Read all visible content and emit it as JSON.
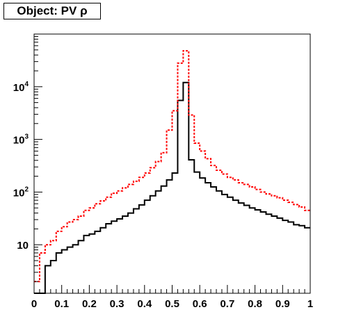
{
  "chart_data": {
    "type": "histogram",
    "title": "Object: PV ρ",
    "x_axis": {
      "range": [
        0,
        1
      ],
      "ticks": [
        "0",
        "0.1",
        "0.2",
        "0.3",
        "0.4",
        "0.5",
        "0.6",
        "0.7",
        "0.8",
        "0.9",
        "1"
      ],
      "tick_values": [
        0,
        0.1,
        0.2,
        0.3,
        0.4,
        0.5,
        0.6,
        0.7,
        0.8,
        0.9,
        1
      ]
    },
    "y_axis": {
      "scale": "log",
      "range": [
        1.2,
        100000
      ],
      "tick_labels": [
        {
          "value": 10,
          "base": "10",
          "exp": ""
        },
        {
          "value": 100,
          "base": "10",
          "exp": "2"
        },
        {
          "value": 1000,
          "base": "10",
          "exp": "3"
        },
        {
          "value": 10000,
          "base": "10",
          "exp": "4"
        }
      ]
    },
    "bin_edges": {
      "start": 0,
      "end": 1,
      "count": 50
    },
    "grid": false,
    "series": [
      {
        "color": "#000000",
        "style": "solid",
        "values": [
          1.2,
          1.2,
          4,
          5,
          7,
          8,
          9,
          10,
          12,
          15,
          16,
          18,
          21,
          25,
          28,
          31,
          35,
          40,
          48,
          57,
          70,
          85,
          105,
          130,
          170,
          230,
          5500,
          12000,
          410,
          240,
          185,
          150,
          125,
          105,
          90,
          80,
          70,
          62,
          56,
          50,
          46,
          42,
          38,
          35,
          32,
          29,
          27,
          24,
          23,
          21
        ]
      },
      {
        "color": "#ff0000",
        "style": "dashed",
        "values": [
          2,
          7,
          10,
          12,
          18,
          22,
          27,
          30,
          35,
          45,
          50,
          60,
          68,
          80,
          95,
          105,
          120,
          140,
          160,
          190,
          230,
          290,
          380,
          560,
          1500,
          3500,
          28000,
          48000,
          2900,
          850,
          600,
          430,
          320,
          260,
          220,
          190,
          170,
          150,
          140,
          125,
          112,
          100,
          92,
          85,
          78,
          70,
          64,
          58,
          52,
          45
        ]
      }
    ]
  }
}
